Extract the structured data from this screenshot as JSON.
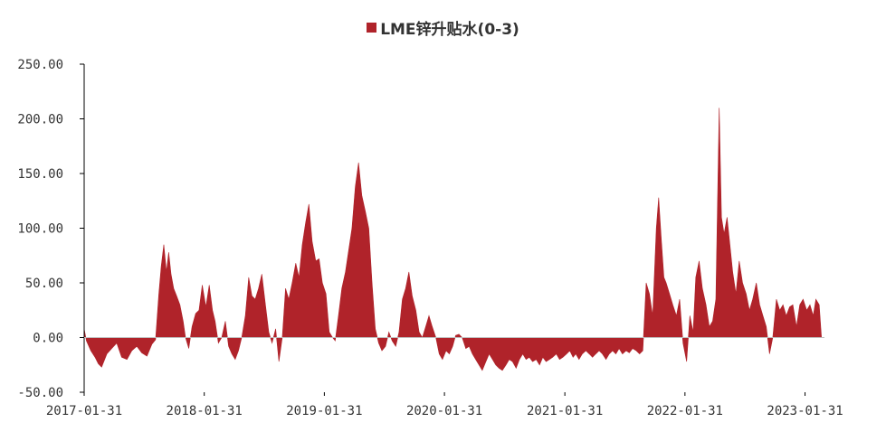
{
  "chart_data": {
    "type": "area",
    "legend_position": "top-center",
    "grid": false,
    "colors": {
      "series": "#b0232a",
      "axis": "#000000",
      "text": "#333333"
    },
    "ylim": [
      -50,
      250
    ],
    "y_ticks": [
      -50,
      0,
      50,
      100,
      150,
      200,
      250
    ],
    "y_tick_labels": [
      "-50.00",
      "0.00",
      "50.00",
      "100.00",
      "150.00",
      "200.00",
      "250.00"
    ],
    "xlim": [
      "2017-01-31",
      "2023-03-31"
    ],
    "x_ticks": [
      "2017-01-31",
      "2018-01-31",
      "2019-01-31",
      "2020-01-31",
      "2021-01-31",
      "2022-01-31",
      "2023-01-31"
    ],
    "series": [
      {
        "name": "LME锌升贴水(0-3)",
        "color": "#b0232a",
        "points": [
          [
            "2017-01-31",
            8
          ],
          [
            "2017-02-07",
            -3
          ],
          [
            "2017-02-20",
            -12
          ],
          [
            "2017-03-05",
            -18
          ],
          [
            "2017-03-15",
            -24
          ],
          [
            "2017-03-25",
            -27
          ],
          [
            "2017-04-10",
            -15
          ],
          [
            "2017-04-25",
            -10
          ],
          [
            "2017-05-10",
            -5
          ],
          [
            "2017-05-25",
            -18
          ],
          [
            "2017-06-10",
            -20
          ],
          [
            "2017-06-25",
            -12
          ],
          [
            "2017-07-10",
            -8
          ],
          [
            "2017-07-25",
            -14
          ],
          [
            "2017-08-10",
            -17
          ],
          [
            "2017-08-25",
            -6
          ],
          [
            "2017-09-05",
            -2
          ],
          [
            "2017-09-15",
            40
          ],
          [
            "2017-09-22",
            65
          ],
          [
            "2017-09-30",
            85
          ],
          [
            "2017-10-08",
            60
          ],
          [
            "2017-10-15",
            78
          ],
          [
            "2017-10-22",
            58
          ],
          [
            "2017-10-30",
            45
          ],
          [
            "2017-11-08",
            38
          ],
          [
            "2017-11-18",
            30
          ],
          [
            "2017-11-28",
            15
          ],
          [
            "2017-12-05",
            0
          ],
          [
            "2017-12-15",
            -10
          ],
          [
            "2017-12-25",
            10
          ],
          [
            "2018-01-05",
            22
          ],
          [
            "2018-01-15",
            25
          ],
          [
            "2018-01-25",
            48
          ],
          [
            "2018-02-05",
            28
          ],
          [
            "2018-02-15",
            48
          ],
          [
            "2018-02-25",
            25
          ],
          [
            "2018-03-05",
            15
          ],
          [
            "2018-03-15",
            -5
          ],
          [
            "2018-03-25",
            0
          ],
          [
            "2018-04-05",
            15
          ],
          [
            "2018-04-15",
            -8
          ],
          [
            "2018-04-25",
            -15
          ],
          [
            "2018-05-05",
            -20
          ],
          [
            "2018-05-15",
            -12
          ],
          [
            "2018-05-25",
            0
          ],
          [
            "2018-06-05",
            20
          ],
          [
            "2018-06-15",
            55
          ],
          [
            "2018-06-25",
            38
          ],
          [
            "2018-07-05",
            35
          ],
          [
            "2018-07-15",
            45
          ],
          [
            "2018-07-25",
            58
          ],
          [
            "2018-08-05",
            30
          ],
          [
            "2018-08-15",
            5
          ],
          [
            "2018-08-25",
            -5
          ],
          [
            "2018-09-05",
            8
          ],
          [
            "2018-09-15",
            -22
          ],
          [
            "2018-09-25",
            0
          ],
          [
            "2018-10-05",
            45
          ],
          [
            "2018-10-15",
            35
          ],
          [
            "2018-10-25",
            50
          ],
          [
            "2018-11-05",
            68
          ],
          [
            "2018-11-15",
            55
          ],
          [
            "2018-11-25",
            85
          ],
          [
            "2018-12-05",
            105
          ],
          [
            "2018-12-15",
            122
          ],
          [
            "2018-12-25",
            88
          ],
          [
            "2019-01-05",
            70
          ],
          [
            "2019-01-15",
            72
          ],
          [
            "2019-01-25",
            50
          ],
          [
            "2019-02-05",
            40
          ],
          [
            "2019-02-15",
            5
          ],
          [
            "2019-02-25",
            0
          ],
          [
            "2019-03-05",
            -3
          ],
          [
            "2019-03-15",
            20
          ],
          [
            "2019-03-25",
            45
          ],
          [
            "2019-04-05",
            60
          ],
          [
            "2019-04-15",
            80
          ],
          [
            "2019-04-25",
            100
          ],
          [
            "2019-05-05",
            138
          ],
          [
            "2019-05-15",
            160
          ],
          [
            "2019-05-25",
            130
          ],
          [
            "2019-06-05",
            115
          ],
          [
            "2019-06-15",
            100
          ],
          [
            "2019-06-25",
            50
          ],
          [
            "2019-07-05",
            8
          ],
          [
            "2019-07-15",
            -5
          ],
          [
            "2019-07-25",
            -12
          ],
          [
            "2019-08-05",
            -8
          ],
          [
            "2019-08-15",
            5
          ],
          [
            "2019-08-25",
            -3
          ],
          [
            "2019-09-05",
            -8
          ],
          [
            "2019-09-15",
            5
          ],
          [
            "2019-09-25",
            35
          ],
          [
            "2019-10-05",
            45
          ],
          [
            "2019-10-15",
            60
          ],
          [
            "2019-10-25",
            38
          ],
          [
            "2019-11-05",
            25
          ],
          [
            "2019-11-15",
            5
          ],
          [
            "2019-11-25",
            0
          ],
          [
            "2019-12-05",
            10
          ],
          [
            "2019-12-15",
            20
          ],
          [
            "2019-12-25",
            10
          ],
          [
            "2020-01-05",
            0
          ],
          [
            "2020-01-15",
            -15
          ],
          [
            "2020-01-25",
            -20
          ],
          [
            "2020-02-05",
            -12
          ],
          [
            "2020-02-15",
            -15
          ],
          [
            "2020-02-25",
            -8
          ],
          [
            "2020-03-05",
            2
          ],
          [
            "2020-03-15",
            3
          ],
          [
            "2020-03-25",
            0
          ],
          [
            "2020-04-05",
            -10
          ],
          [
            "2020-04-15",
            -8
          ],
          [
            "2020-04-25",
            -15
          ],
          [
            "2020-05-05",
            -20
          ],
          [
            "2020-05-15",
            -25
          ],
          [
            "2020-05-25",
            -30
          ],
          [
            "2020-06-05",
            -22
          ],
          [
            "2020-06-15",
            -15
          ],
          [
            "2020-06-25",
            -20
          ],
          [
            "2020-07-05",
            -25
          ],
          [
            "2020-07-15",
            -28
          ],
          [
            "2020-07-25",
            -30
          ],
          [
            "2020-08-05",
            -25
          ],
          [
            "2020-08-15",
            -20
          ],
          [
            "2020-08-25",
            -22
          ],
          [
            "2020-09-05",
            -28
          ],
          [
            "2020-09-15",
            -20
          ],
          [
            "2020-09-25",
            -15
          ],
          [
            "2020-10-05",
            -20
          ],
          [
            "2020-10-15",
            -18
          ],
          [
            "2020-10-25",
            -22
          ],
          [
            "2020-11-05",
            -20
          ],
          [
            "2020-11-15",
            -25
          ],
          [
            "2020-11-25",
            -18
          ],
          [
            "2020-12-05",
            -22
          ],
          [
            "2020-12-15",
            -20
          ],
          [
            "2020-12-25",
            -18
          ],
          [
            "2021-01-05",
            -15
          ],
          [
            "2021-01-15",
            -20
          ],
          [
            "2021-01-25",
            -18
          ],
          [
            "2021-02-05",
            -15
          ],
          [
            "2021-02-15",
            -12
          ],
          [
            "2021-02-25",
            -18
          ],
          [
            "2021-03-05",
            -15
          ],
          [
            "2021-03-15",
            -20
          ],
          [
            "2021-03-25",
            -15
          ],
          [
            "2021-04-05",
            -12
          ],
          [
            "2021-04-15",
            -15
          ],
          [
            "2021-04-25",
            -18
          ],
          [
            "2021-05-05",
            -15
          ],
          [
            "2021-05-15",
            -12
          ],
          [
            "2021-05-25",
            -15
          ],
          [
            "2021-06-05",
            -20
          ],
          [
            "2021-06-15",
            -15
          ],
          [
            "2021-06-25",
            -12
          ],
          [
            "2021-07-05",
            -15
          ],
          [
            "2021-07-15",
            -10
          ],
          [
            "2021-07-25",
            -15
          ],
          [
            "2021-08-05",
            -12
          ],
          [
            "2021-08-15",
            -14
          ],
          [
            "2021-08-25",
            -10
          ],
          [
            "2021-09-05",
            -12
          ],
          [
            "2021-09-15",
            -15
          ],
          [
            "2021-09-25",
            -12
          ],
          [
            "2021-10-05",
            50
          ],
          [
            "2021-10-15",
            40
          ],
          [
            "2021-10-25",
            20
          ],
          [
            "2021-11-05",
            100
          ],
          [
            "2021-11-12",
            128
          ],
          [
            "2021-11-20",
            90
          ],
          [
            "2021-11-28",
            55
          ],
          [
            "2021-12-05",
            50
          ],
          [
            "2021-12-15",
            40
          ],
          [
            "2021-12-25",
            30
          ],
          [
            "2022-01-05",
            20
          ],
          [
            "2022-01-15",
            35
          ],
          [
            "2022-01-25",
            -5
          ],
          [
            "2022-02-05",
            -22
          ],
          [
            "2022-02-15",
            20
          ],
          [
            "2022-02-25",
            5
          ],
          [
            "2022-03-05",
            55
          ],
          [
            "2022-03-15",
            70
          ],
          [
            "2022-03-25",
            45
          ],
          [
            "2022-04-05",
            30
          ],
          [
            "2022-04-15",
            10
          ],
          [
            "2022-04-25",
            15
          ],
          [
            "2022-05-05",
            35
          ],
          [
            "2022-05-15",
            210
          ],
          [
            "2022-05-22",
            110
          ],
          [
            "2022-05-30",
            95
          ],
          [
            "2022-06-08",
            110
          ],
          [
            "2022-06-15",
            90
          ],
          [
            "2022-06-25",
            60
          ],
          [
            "2022-07-05",
            40
          ],
          [
            "2022-07-15",
            70
          ],
          [
            "2022-07-25",
            50
          ],
          [
            "2022-08-05",
            40
          ],
          [
            "2022-08-15",
            25
          ],
          [
            "2022-08-25",
            35
          ],
          [
            "2022-09-05",
            50
          ],
          [
            "2022-09-15",
            30
          ],
          [
            "2022-09-25",
            20
          ],
          [
            "2022-10-05",
            10
          ],
          [
            "2022-10-15",
            -15
          ],
          [
            "2022-10-25",
            0
          ],
          [
            "2022-11-05",
            35
          ],
          [
            "2022-11-15",
            25
          ],
          [
            "2022-11-25",
            30
          ],
          [
            "2022-12-05",
            20
          ],
          [
            "2022-12-15",
            28
          ],
          [
            "2022-12-25",
            30
          ],
          [
            "2023-01-05",
            10
          ],
          [
            "2023-01-15",
            30
          ],
          [
            "2023-01-25",
            35
          ],
          [
            "2023-02-05",
            25
          ],
          [
            "2023-02-15",
            30
          ],
          [
            "2023-02-25",
            20
          ],
          [
            "2023-03-05",
            35
          ],
          [
            "2023-03-15",
            30
          ],
          [
            "2023-03-22",
            0
          ]
        ]
      }
    ]
  }
}
